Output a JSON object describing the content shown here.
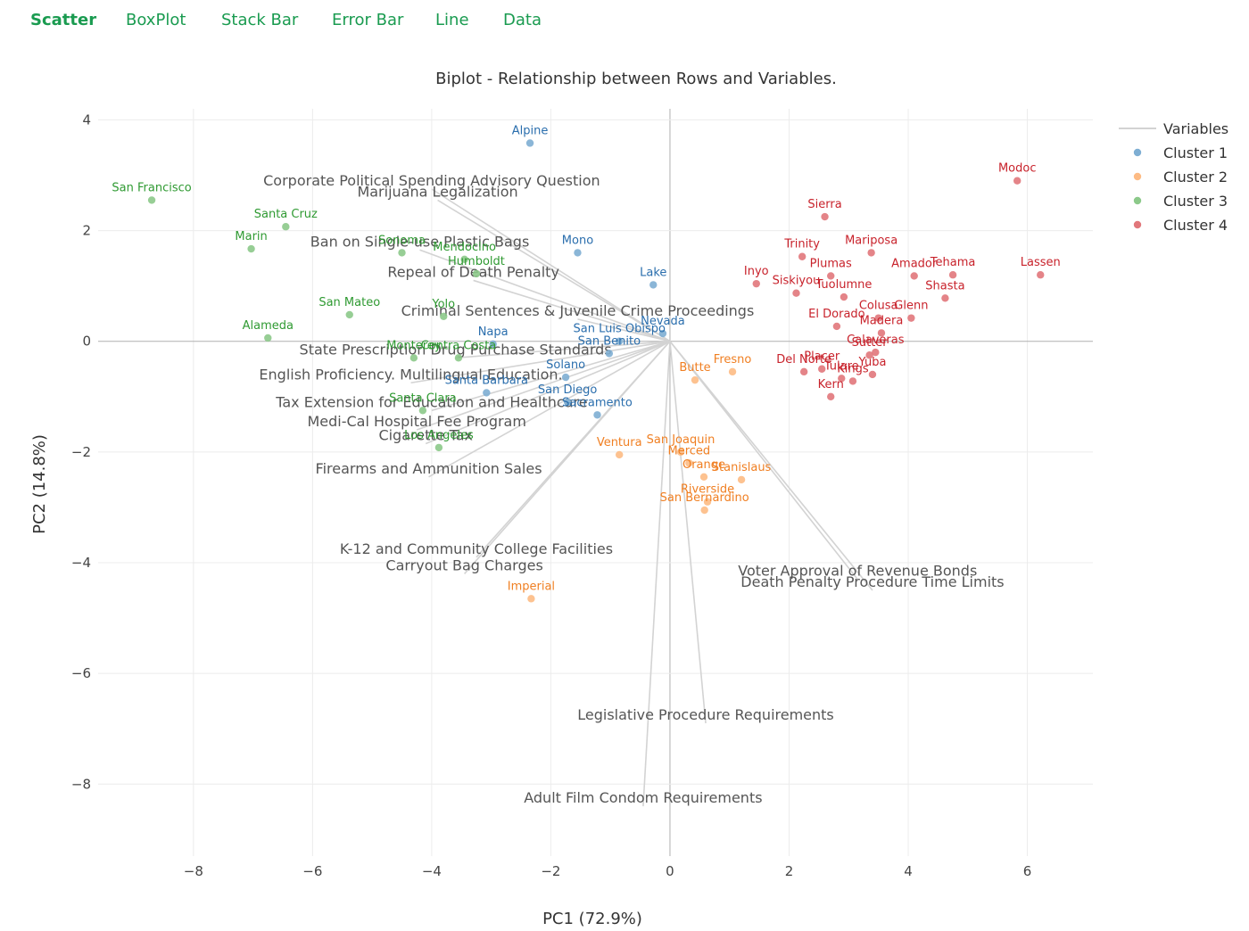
{
  "tabs": [
    {
      "label": "Scatter",
      "active": true
    },
    {
      "label": "BoxPlot",
      "active": false
    },
    {
      "label": "Stack Bar",
      "active": false
    },
    {
      "label": "Error Bar",
      "active": false
    },
    {
      "label": "Line",
      "active": false
    },
    {
      "label": "Data",
      "active": false
    }
  ],
  "colors": {
    "accent": "#1a9b50",
    "cluster1_point": "#7eaed3",
    "cluster1_label": "#2a6ead",
    "cluster2_point": "#fdbb84",
    "cluster2_label": "#f07f22",
    "cluster3_point": "#8cc98a",
    "cluster3_label": "#2f9a32",
    "cluster4_point": "#e1777b",
    "cluster4_label": "#c8222b",
    "variables": "#d3d3d3"
  },
  "chart_data": {
    "type": "scatter",
    "title": "Biplot - Relationship between Rows and Variables.",
    "xlabel": "PC1 (72.9%)",
    "ylabel": "PC2 (14.8%)",
    "xlim": [
      -9.6,
      7.1
    ],
    "ylim": [
      -9.3,
      4.2
    ],
    "xticks": [
      -8,
      -6,
      -4,
      -2,
      0,
      2,
      4,
      6
    ],
    "yticks": [
      4,
      2,
      0,
      -2,
      -4,
      -6,
      -8
    ],
    "grid": true,
    "legend": {
      "position": "top-right",
      "entries": [
        "Variables",
        "Cluster 1",
        "Cluster 2",
        "Cluster 3",
        "Cluster 4"
      ]
    },
    "variables": [
      {
        "name": "Corporate Political Spending Advisory Question",
        "x": -4.0,
        "y": 2.75
      },
      {
        "name": "Marijuana Legalization",
        "x": -3.9,
        "y": 2.55
      },
      {
        "name": "Ban on Single-use Plastic Bags",
        "x": -4.2,
        "y": 1.65
      },
      {
        "name": "Repeal of Death Penalty",
        "x": -3.3,
        "y": 1.1
      },
      {
        "name": "Criminal Sentences & Juvenile Crime Proceedings",
        "x": -1.55,
        "y": 0.4
      },
      {
        "name": "State Prescription Drug Purchase Standards",
        "x": -3.6,
        "y": -0.3
      },
      {
        "name": "English Proficiency. Multilingual Education.",
        "x": -4.35,
        "y": -0.75
      },
      {
        "name": "Tax Extension for Education and Healthcare",
        "x": -4.0,
        "y": -1.25
      },
      {
        "name": "Medi-Cal Hospital Fee Program",
        "x": -4.25,
        "y": -1.6
      },
      {
        "name": "Cigarette Tax",
        "x": -4.1,
        "y": -1.85
      },
      {
        "name": "Firearms and Ammunition Sales",
        "x": -4.05,
        "y": -2.45
      },
      {
        "name": "K-12 and Community College Facilities",
        "x": -3.25,
        "y": -3.9
      },
      {
        "name": "Carryout Bag Charges",
        "x": -3.45,
        "y": -4.2
      },
      {
        "name": "Voter Approval of Revenue Bonds",
        "x": 3.15,
        "y": -4.3
      },
      {
        "name": "Death Penalty Procedure Time Limits",
        "x": 3.4,
        "y": -4.5
      },
      {
        "name": "Legislative Procedure Requirements",
        "x": 0.6,
        "y": -6.9
      },
      {
        "name": "Adult Film Condom Requirements",
        "x": -0.45,
        "y": -8.4
      }
    ],
    "series": [
      {
        "name": "Cluster 1",
        "points": [
          {
            "label": "Alpine",
            "x": -2.35,
            "y": 3.58
          },
          {
            "label": "Mono",
            "x": -1.55,
            "y": 1.6
          },
          {
            "label": "Lake",
            "x": -0.28,
            "y": 1.02
          },
          {
            "label": "Nevada",
            "x": -0.12,
            "y": 0.14
          },
          {
            "label": "San Luis Obispo",
            "x": -0.85,
            "y": 0.0
          },
          {
            "label": "San Benito",
            "x": -1.02,
            "y": -0.22
          },
          {
            "label": "Napa",
            "x": -2.97,
            "y": -0.05
          },
          {
            "label": "Solano",
            "x": -1.75,
            "y": -0.65
          },
          {
            "label": "Santa Barbara",
            "x": -3.08,
            "y": -0.93
          },
          {
            "label": "San Diego",
            "x": -1.72,
            "y": -1.1
          },
          {
            "label": "Sacramento",
            "x": -1.22,
            "y": -1.33
          }
        ]
      },
      {
        "name": "Cluster 2",
        "points": [
          {
            "label": "Butte",
            "x": 0.42,
            "y": -0.7
          },
          {
            "label": "Fresno",
            "x": 1.05,
            "y": -0.55
          },
          {
            "label": "Ventura",
            "x": -0.85,
            "y": -2.05
          },
          {
            "label": "San Joaquin",
            "x": 0.18,
            "y": -2.0
          },
          {
            "label": "Merced",
            "x": 0.32,
            "y": -2.2
          },
          {
            "label": "Orange",
            "x": 0.57,
            "y": -2.45
          },
          {
            "label": "Stanislaus",
            "x": 1.2,
            "y": -2.5
          },
          {
            "label": "Riverside",
            "x": 0.63,
            "y": -2.9
          },
          {
            "label": "San Bernardino",
            "x": 0.58,
            "y": -3.05
          },
          {
            "label": "Imperial",
            "x": -2.33,
            "y": -4.65
          }
        ]
      },
      {
        "name": "Cluster 3",
        "points": [
          {
            "label": "San Francisco",
            "x": -8.7,
            "y": 2.55
          },
          {
            "label": "Santa Cruz",
            "x": -6.45,
            "y": 2.07
          },
          {
            "label": "Marin",
            "x": -7.03,
            "y": 1.67
          },
          {
            "label": "Sonoma",
            "x": -4.5,
            "y": 1.6
          },
          {
            "label": "Mendocino",
            "x": -3.45,
            "y": 1.48
          },
          {
            "label": "Humboldt",
            "x": -3.25,
            "y": 1.22
          },
          {
            "label": "San Mateo",
            "x": -5.38,
            "y": 0.48
          },
          {
            "label": "Yolo",
            "x": -3.8,
            "y": 0.45
          },
          {
            "label": "Alameda",
            "x": -6.75,
            "y": 0.06
          },
          {
            "label": "Monterey",
            "x": -4.3,
            "y": -0.3
          },
          {
            "label": "Contra Costa",
            "x": -3.55,
            "y": -0.3
          },
          {
            "label": "Santa Clara",
            "x": -4.15,
            "y": -1.25
          },
          {
            "label": "Los Angeles",
            "x": -3.88,
            "y": -1.92
          }
        ]
      },
      {
        "name": "Cluster 4",
        "points": [
          {
            "label": "Modoc",
            "x": 5.83,
            "y": 2.9
          },
          {
            "label": "Sierra",
            "x": 2.6,
            "y": 2.25
          },
          {
            "label": "Trinity",
            "x": 2.22,
            "y": 1.53
          },
          {
            "label": "Mariposa",
            "x": 3.38,
            "y": 1.6
          },
          {
            "label": "Plumas",
            "x": 2.7,
            "y": 1.18
          },
          {
            "label": "Amador",
            "x": 4.1,
            "y": 1.18
          },
          {
            "label": "Tehama",
            "x": 4.75,
            "y": 1.2
          },
          {
            "label": "Lassen",
            "x": 6.22,
            "y": 1.2
          },
          {
            "label": "Inyo",
            "x": 1.45,
            "y": 1.04
          },
          {
            "label": "Siskiyou",
            "x": 2.12,
            "y": 0.87
          },
          {
            "label": "Tuolumne",
            "x": 2.92,
            "y": 0.8
          },
          {
            "label": "Shasta",
            "x": 4.62,
            "y": 0.78
          },
          {
            "label": "Colusa",
            "x": 3.5,
            "y": 0.42
          },
          {
            "label": "Glenn",
            "x": 4.05,
            "y": 0.42
          },
          {
            "label": "El Dorado",
            "x": 2.8,
            "y": 0.27
          },
          {
            "label": "Madera",
            "x": 3.55,
            "y": 0.15
          },
          {
            "label": "Calaveras",
            "x": 3.45,
            "y": -0.2
          },
          {
            "label": "Sutter",
            "x": 3.35,
            "y": -0.25
          },
          {
            "label": "Placer",
            "x": 2.55,
            "y": -0.5
          },
          {
            "label": "Del Norte",
            "x": 2.25,
            "y": -0.55
          },
          {
            "label": "Yuba",
            "x": 3.4,
            "y": -0.6
          },
          {
            "label": "Tulare",
            "x": 2.88,
            "y": -0.67
          },
          {
            "label": "Kings",
            "x": 3.07,
            "y": -0.72
          },
          {
            "label": "Kern",
            "x": 2.7,
            "y": -1.0
          }
        ]
      }
    ]
  }
}
